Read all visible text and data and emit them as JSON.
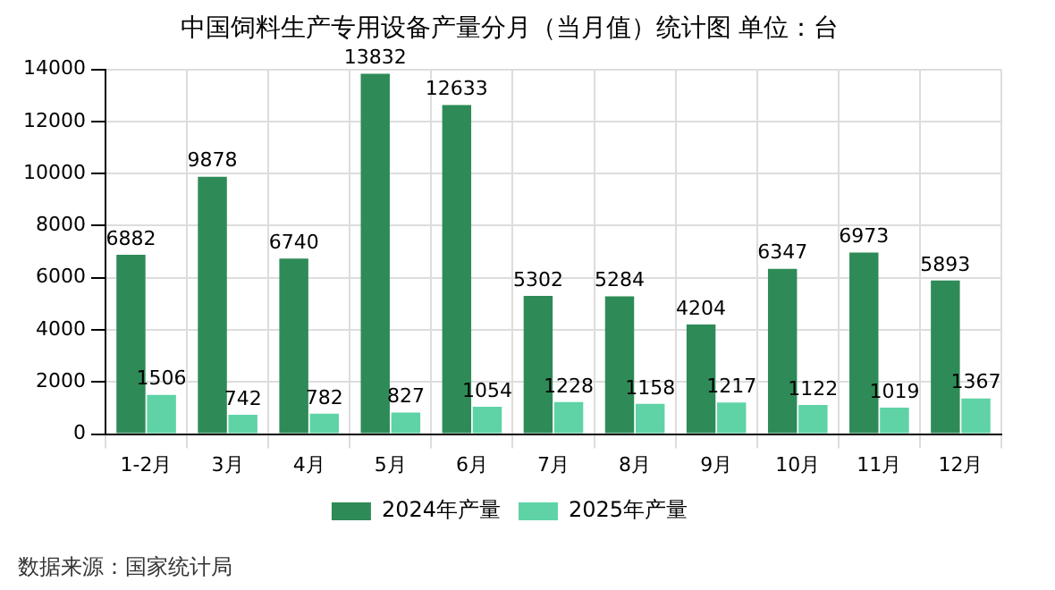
{
  "chart_data": {
    "type": "bar",
    "title": "中国饲料生产专用设备产量分月（当月值）统计图 单位：台",
    "categories": [
      "1-2月",
      "3月",
      "4月",
      "5月",
      "6月",
      "7月",
      "8月",
      "9月",
      "10月",
      "11月",
      "12月"
    ],
    "series": [
      {
        "name": "2024年产量",
        "color": "#2e8b57",
        "values": [
          6882,
          9878,
          6740,
          13832,
          12633,
          5302,
          5284,
          4204,
          6347,
          6973,
          5893
        ]
      },
      {
        "name": "2025年产量",
        "color": "#5fd3a6",
        "values": [
          1506,
          742,
          782,
          827,
          1054,
          1228,
          1158,
          1217,
          1122,
          1019,
          1367
        ]
      }
    ],
    "ylim": [
      0,
      14000
    ],
    "yticks": [
      0,
      2000,
      4000,
      6000,
      8000,
      10000,
      12000,
      14000
    ],
    "grid": true,
    "legend": "bottom",
    "data_labels": true,
    "annotations": [
      "数据来源：国家统计局"
    ]
  }
}
